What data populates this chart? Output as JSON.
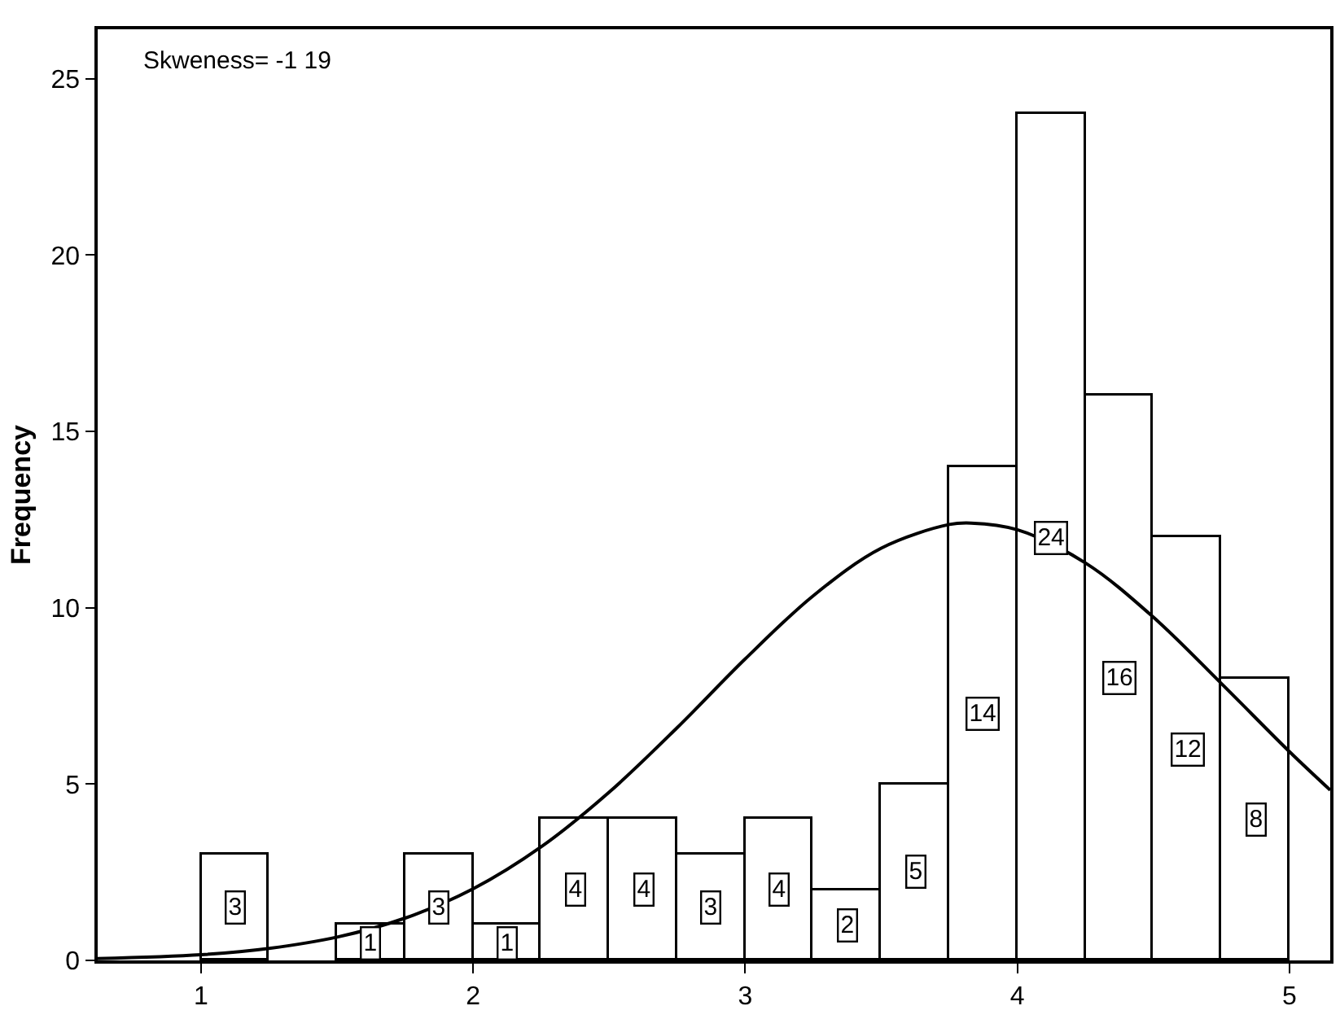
{
  "chart_data": {
    "type": "histogram",
    "ylabel": "Frequency",
    "annotations": [
      "Skweness= -1 19"
    ],
    "bins": [
      1.0,
      1.25,
      1.5,
      1.75,
      2.0,
      2.25,
      2.5,
      2.75,
      3.0,
      3.25,
      3.5,
      3.75,
      4.0,
      4.25,
      4.5,
      4.75,
      5.0
    ],
    "values": [
      3,
      0,
      1,
      3,
      1,
      4,
      4,
      3,
      4,
      2,
      5,
      14,
      24,
      16,
      12,
      8
    ],
    "value_labels": [
      "3",
      null,
      "1",
      "3",
      "1",
      "4",
      "4",
      "3",
      "4",
      "2",
      "5",
      "14",
      "24",
      "16",
      "12",
      "8"
    ],
    "color": "#ffffff",
    "series": [
      {
        "type": "line",
        "color": "#000000",
        "x": [
          0.62,
          1.0,
          1.25,
          1.5,
          1.75,
          2.0,
          2.25,
          2.5,
          2.75,
          3.0,
          3.25,
          3.5,
          3.75,
          3.83,
          4.0,
          4.25,
          4.5,
          4.75,
          5.0,
          5.15
        ],
        "values": [
          0.05,
          0.16,
          0.34,
          0.66,
          1.2,
          2.03,
          3.22,
          4.77,
          6.6,
          8.55,
          10.34,
          11.69,
          12.36,
          12.4,
          12.21,
          11.27,
          9.73,
          7.85,
          5.92,
          4.83
        ]
      }
    ],
    "xlim": [
      0.62,
      5.15
    ],
    "ylim": [
      0,
      26.4
    ],
    "xticks": [
      1,
      2,
      3,
      4,
      5
    ],
    "yticks": [
      0,
      5,
      10,
      15,
      20,
      25
    ],
    "line_style": "solid"
  }
}
